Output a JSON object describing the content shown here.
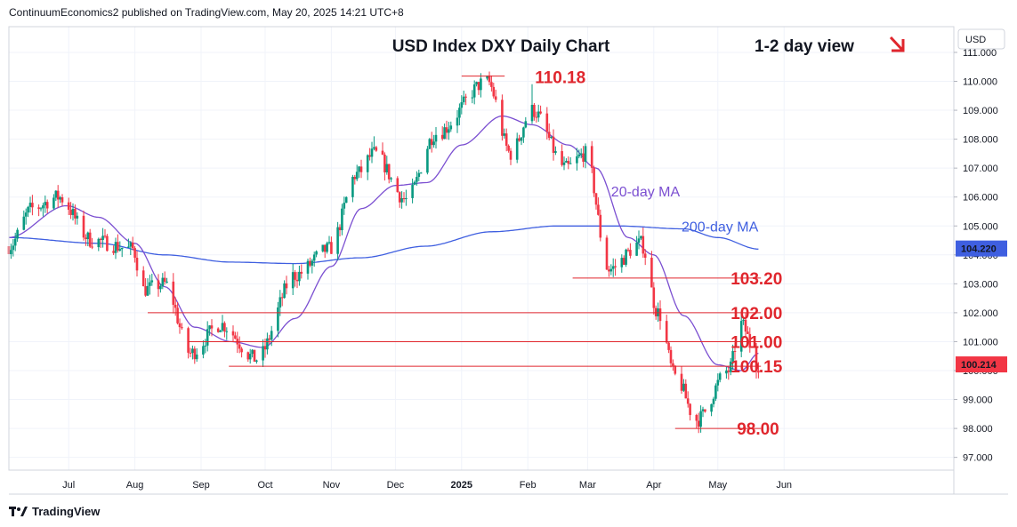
{
  "header": {
    "text": "ContinuumEconomics2 published on TradingView.com, May 20, 2025 14:21 UTC+8"
  },
  "footer": {
    "brand": "TradingView",
    "logo_icon": "tradingview-logo-icon"
  },
  "colors": {
    "up": "#089981",
    "down": "#f23645",
    "ma20": "#7b4fd1",
    "ma200": "#3f5fe0",
    "level": "#e0262d",
    "grid": "#f0f3fa"
  },
  "chart_data": {
    "type": "candlestick",
    "title": "USD Index DXY Daily Chart",
    "view": "1-2 day view",
    "view_icon": "arrow-down-right-icon",
    "currency": "USD",
    "y_ticks": [
      97.0,
      98.0,
      99.0,
      100.0,
      101.0,
      102.0,
      103.0,
      104.0,
      105.0,
      106.0,
      107.0,
      108.0,
      109.0,
      110.0,
      111.0
    ],
    "x_ticks": [
      {
        "label": "Jul",
        "date": "2024-07-01"
      },
      {
        "label": "Aug",
        "date": "2024-08-01"
      },
      {
        "label": "Sep",
        "date": "2024-09-01"
      },
      {
        "label": "Oct",
        "date": "2024-10-01"
      },
      {
        "label": "Nov",
        "date": "2024-11-01"
      },
      {
        "label": "Dec",
        "date": "2024-12-01"
      },
      {
        "label": "2025",
        "date": "2025-01-01"
      },
      {
        "label": "Feb",
        "date": "2025-02-01"
      },
      {
        "label": "Mar",
        "date": "2025-03-01"
      },
      {
        "label": "Apr",
        "date": "2025-04-01"
      },
      {
        "label": "May",
        "date": "2025-05-01"
      },
      {
        "label": "Jun",
        "date": "2025-06-01"
      }
    ],
    "price_badges": [
      {
        "label": "104.220",
        "value": 104.22,
        "color": "#3f5fe0"
      },
      {
        "label": "100.214",
        "value": 100.214,
        "color": "#f23645"
      }
    ],
    "levels": [
      {
        "label": "110.18",
        "value": 110.18,
        "from": "2025-01-01",
        "to": "2025-02-01"
      },
      {
        "label": "103.20",
        "value": 103.2,
        "from": "2025-02-22",
        "to": "2025-06-01"
      },
      {
        "label": "102.00",
        "value": 102.0,
        "from": "2024-08-07",
        "to": "2025-06-01"
      },
      {
        "label": "101.00",
        "value": 101.0,
        "from": "2024-08-26",
        "to": "2025-06-01"
      },
      {
        "label": "100.15",
        "value": 100.15,
        "from": "2024-09-14",
        "to": "2025-06-01"
      },
      {
        "label": "98.00",
        "value": 98.0,
        "from": "2025-04-11",
        "to": "2025-06-01"
      }
    ],
    "ma_labels": [
      {
        "text": "20-day MA",
        "series": "ma20",
        "at": "2025-03-12",
        "value": 106.2
      },
      {
        "text": "200-day MA",
        "series": "ma200",
        "at": "2025-04-14",
        "value": 105.0
      }
    ],
    "anchors": [
      [
        "2024-06-03",
        104.3
      ],
      [
        "2024-06-14",
        105.6
      ],
      [
        "2024-06-26",
        106.0
      ],
      [
        "2024-07-12",
        104.5
      ],
      [
        "2024-07-31",
        104.2
      ],
      [
        "2024-08-05",
        102.8
      ],
      [
        "2024-08-15",
        103.0
      ],
      [
        "2024-08-27",
        100.6
      ],
      [
        "2024-09-10",
        101.6
      ],
      [
        "2024-09-27",
        100.4
      ],
      [
        "2024-10-15",
        103.3
      ],
      [
        "2024-10-31",
        104.2
      ],
      [
        "2024-11-13",
        106.8
      ],
      [
        "2024-11-21",
        107.5
      ],
      [
        "2024-12-06",
        105.9
      ],
      [
        "2024-12-20",
        108.2
      ],
      [
        "2025-01-13",
        110.0
      ],
      [
        "2025-01-24",
        107.5
      ],
      [
        "2025-02-03",
        109.0
      ],
      [
        "2025-02-19",
        107.0
      ],
      [
        "2025-02-28",
        107.5
      ],
      [
        "2025-03-11",
        103.5
      ],
      [
        "2025-03-26",
        104.4
      ],
      [
        "2025-04-03",
        102.0
      ],
      [
        "2025-04-11",
        99.8
      ],
      [
        "2025-04-21",
        98.3
      ],
      [
        "2025-05-06",
        100.0
      ],
      [
        "2025-05-12",
        101.6
      ],
      [
        "2025-05-20",
        100.2
      ]
    ],
    "ma20": [
      [
        "2024-06-03",
        104.6
      ],
      [
        "2024-06-30",
        105.7
      ],
      [
        "2024-07-15",
        105.3
      ],
      [
        "2024-08-01",
        104.4
      ],
      [
        "2024-08-15",
        102.9
      ],
      [
        "2024-08-29",
        101.5
      ],
      [
        "2024-09-15",
        101.0
      ],
      [
        "2024-09-30",
        100.8
      ],
      [
        "2024-10-15",
        101.8
      ],
      [
        "2024-11-01",
        103.6
      ],
      [
        "2024-11-15",
        105.6
      ],
      [
        "2024-12-01",
        106.4
      ],
      [
        "2024-12-16",
        106.5
      ],
      [
        "2025-01-01",
        107.8
      ],
      [
        "2025-01-20",
        108.8
      ],
      [
        "2025-02-03",
        108.5
      ],
      [
        "2025-02-20",
        107.8
      ],
      [
        "2025-03-05",
        107.0
      ],
      [
        "2025-03-20",
        104.6
      ],
      [
        "2025-04-01",
        104.0
      ],
      [
        "2025-04-15",
        101.9
      ],
      [
        "2025-05-01",
        100.2
      ],
      [
        "2025-05-12",
        100.0
      ],
      [
        "2025-05-20",
        100.6
      ]
    ],
    "ma200": [
      [
        "2024-06-03",
        104.6
      ],
      [
        "2024-07-15",
        104.4
      ],
      [
        "2024-08-15",
        104.0
      ],
      [
        "2024-09-15",
        103.75
      ],
      [
        "2024-10-15",
        103.7
      ],
      [
        "2024-11-15",
        103.9
      ],
      [
        "2024-12-15",
        104.3
      ],
      [
        "2025-01-15",
        104.8
      ],
      [
        "2025-02-15",
        105.0
      ],
      [
        "2025-03-15",
        105.0
      ],
      [
        "2025-04-15",
        104.9
      ],
      [
        "2025-05-01",
        104.6
      ],
      [
        "2025-05-20",
        104.2
      ]
    ],
    "spikes": [
      {
        "date": "2025-01-13",
        "high": 110.18
      },
      {
        "date": "2025-02-03",
        "high": 109.9
      },
      {
        "date": "2025-04-21",
        "low": 98.0
      },
      {
        "date": "2025-05-12",
        "high": 102.0
      },
      {
        "date": "2024-11-21",
        "high": 108.1
      }
    ]
  }
}
